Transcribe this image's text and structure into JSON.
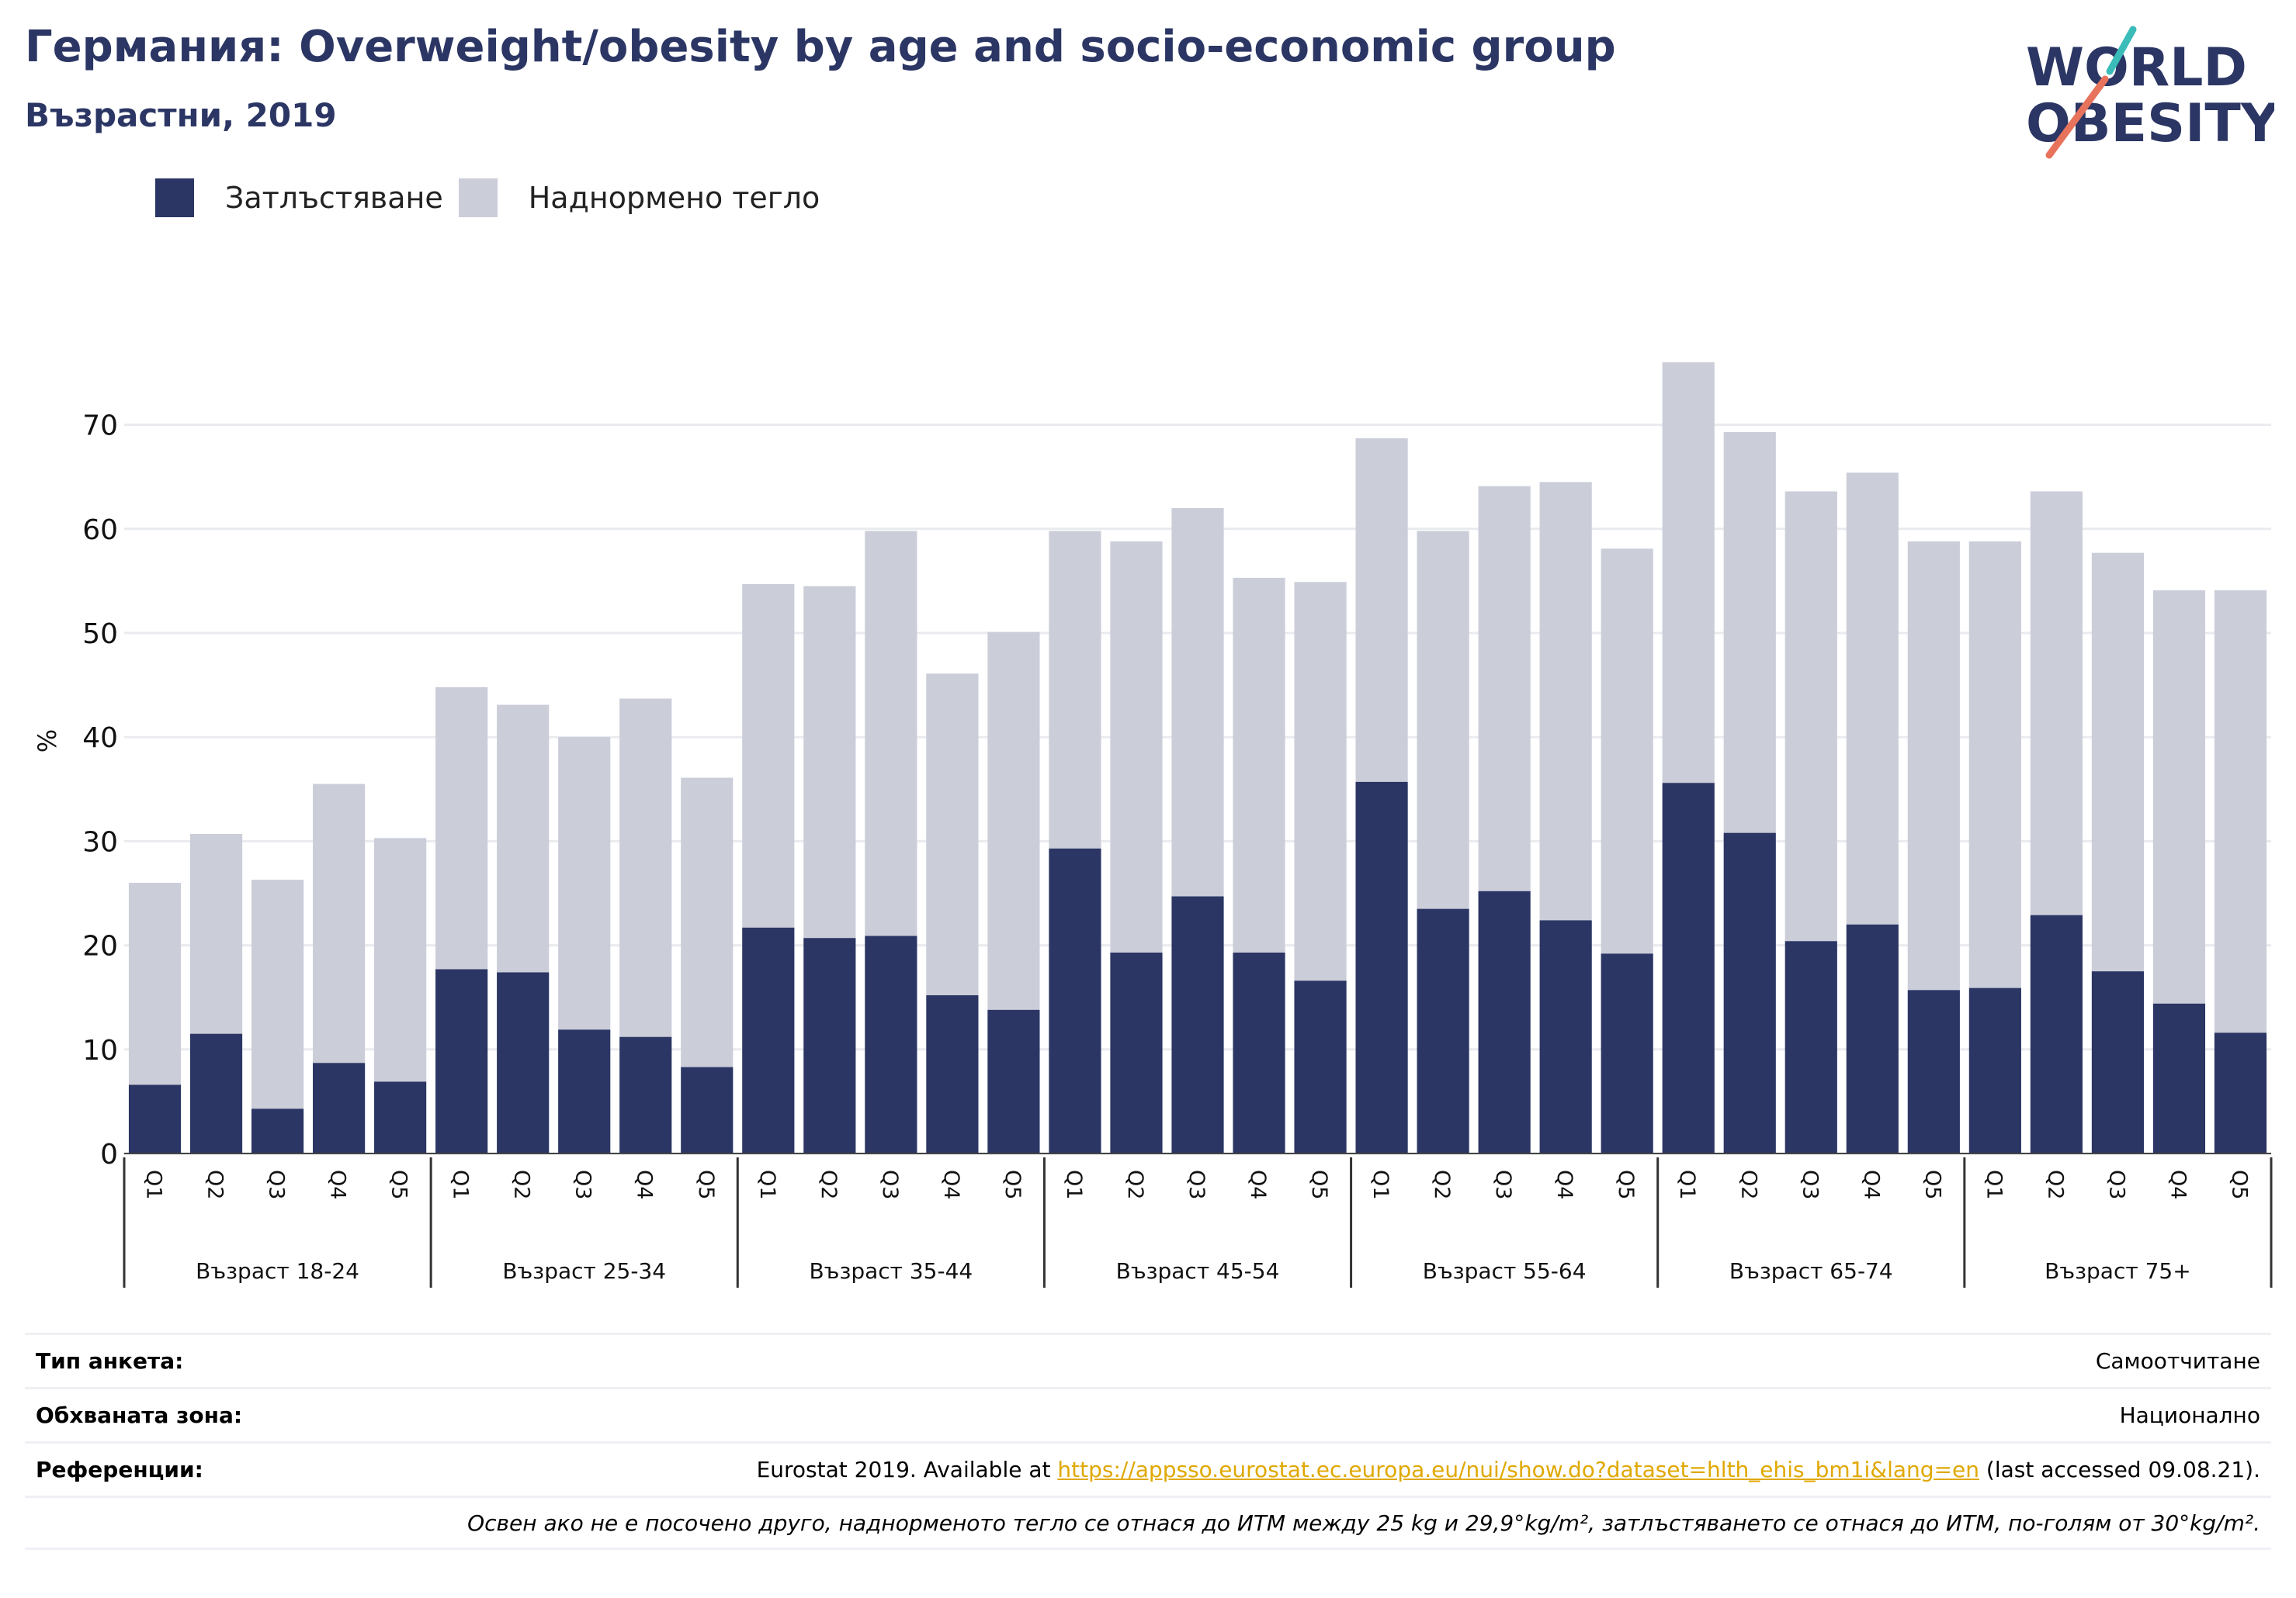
{
  "header": {
    "title": "Германия: Overweight/obesity by age and socio-economic group",
    "subtitle": "Възрастни, 2019",
    "logo_text": [
      "WORLD",
      "OBESITY"
    ]
  },
  "colors": {
    "obesity": "#2b3664",
    "overweight": "#cbcdd9",
    "title": "#2b3664",
    "logo_teal": "#3bbcb8",
    "logo_coral": "#e8735d",
    "link": "#e0a800"
  },
  "chart_data": {
    "type": "bar",
    "stacked": true,
    "ylabel": "%",
    "ylim": [
      0,
      78
    ],
    "yticks": [
      0,
      10,
      20,
      30,
      40,
      50,
      60,
      70
    ],
    "grid": true,
    "legend_position": "top-left",
    "legend": [
      "Затлъстяване",
      "Наднормено тегло"
    ],
    "quintiles": [
      "Q1",
      "Q2",
      "Q3",
      "Q4",
      "Q5"
    ],
    "groups": [
      "Възраст 18-24",
      "Възраст 25-34",
      "Възраст 35-44",
      "Възраст 45-54",
      "Възраст 55-64",
      "Възраст 65-74",
      "Възраст 75+"
    ],
    "series": [
      {
        "name": "Затлъстяване",
        "color": "#2b3664",
        "values": [
          6.6,
          11.5,
          4.3,
          8.7,
          6.9,
          17.7,
          17.4,
          11.9,
          11.2,
          8.3,
          21.7,
          20.7,
          20.9,
          15.2,
          13.8,
          29.3,
          19.3,
          24.7,
          19.3,
          16.6,
          35.7,
          23.5,
          25.2,
          22.4,
          19.2,
          35.6,
          30.8,
          20.4,
          22.0,
          15.7,
          15.9,
          22.9,
          17.5,
          14.4,
          11.6
        ]
      },
      {
        "name": "Наднормено тегло",
        "color": "#cbcdd9",
        "values": [
          19.4,
          19.2,
          22.0,
          26.8,
          23.4,
          27.1,
          25.7,
          28.1,
          32.5,
          27.8,
          33.0,
          33.8,
          38.9,
          30.9,
          36.3,
          30.5,
          39.5,
          37.3,
          36.0,
          38.3,
          33.0,
          36.3,
          38.9,
          42.1,
          38.9,
          40.4,
          38.5,
          43.2,
          43.4,
          43.1,
          42.9,
          40.7,
          40.2,
          39.7,
          42.5
        ]
      }
    ]
  },
  "info": {
    "survey_label": "Тип анкета:",
    "survey_value": "Самоотчитане",
    "area_label": "Обхваната зона:",
    "area_value": "Национално",
    "refs_label": "Референции:",
    "refs_prefix": "Eurostat 2019. Available at ",
    "refs_link": "https://appsso.eurostat.ec.europa.eu/nui/show.do?dataset=hlth_ehis_bm1i&lang=en",
    "refs_suffix": " (last accessed 09.08.21).",
    "note": "Освен ако не е посочено друго, наднорменото тегло се отнася до ИТМ между 25 kg и 29,9°kg/m², затлъстяването се отнася до ИТМ, по-голям от 30°kg/m²."
  }
}
